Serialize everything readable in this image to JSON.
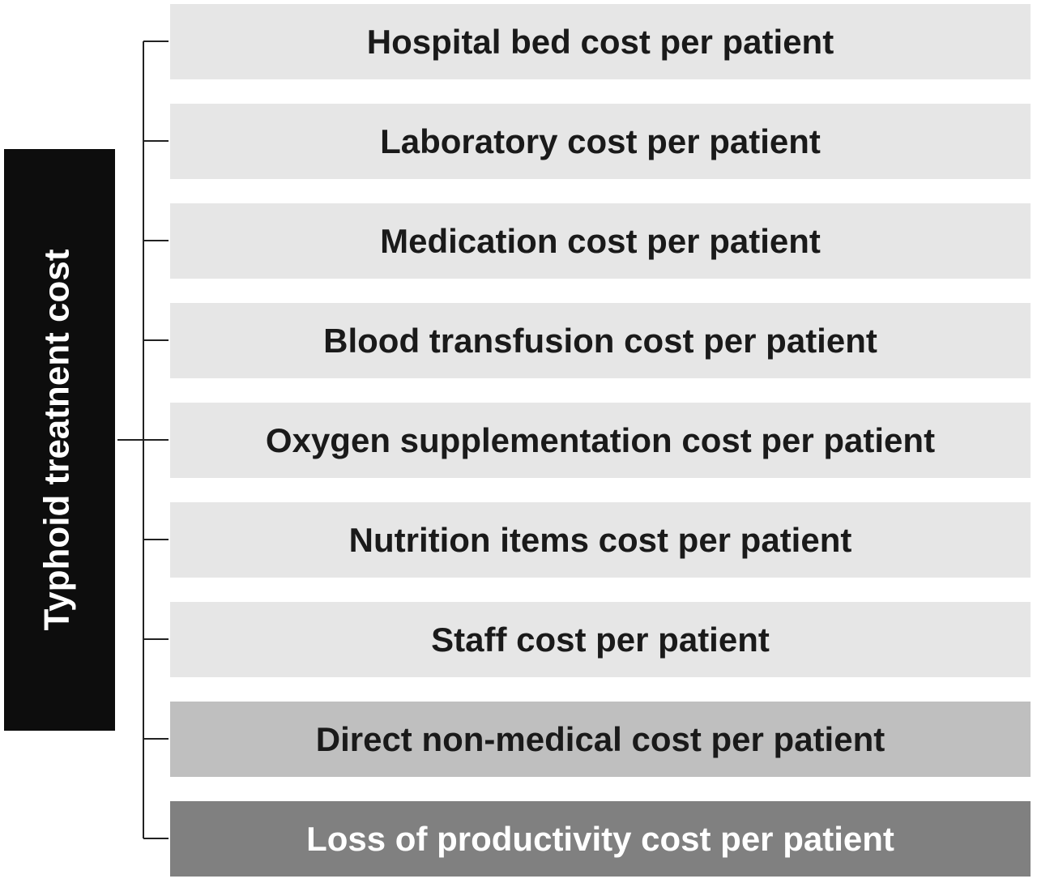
{
  "root": {
    "label": "Typhoid treatnent cost"
  },
  "nodes": [
    {
      "label": "Hospital bed cost per patient"
    },
    {
      "label": "Laboratory cost per patient"
    },
    {
      "label": "Medication cost per patient"
    },
    {
      "label": "Blood transfusion cost per patient"
    },
    {
      "label": "Oxygen supplementation cost per patient"
    },
    {
      "label": "Nutrition items cost per patient"
    },
    {
      "label": "Staff cost per patient"
    },
    {
      "label": "Direct non-medical cost per patient"
    },
    {
      "label": "Loss of productivity cost per patient"
    }
  ]
}
